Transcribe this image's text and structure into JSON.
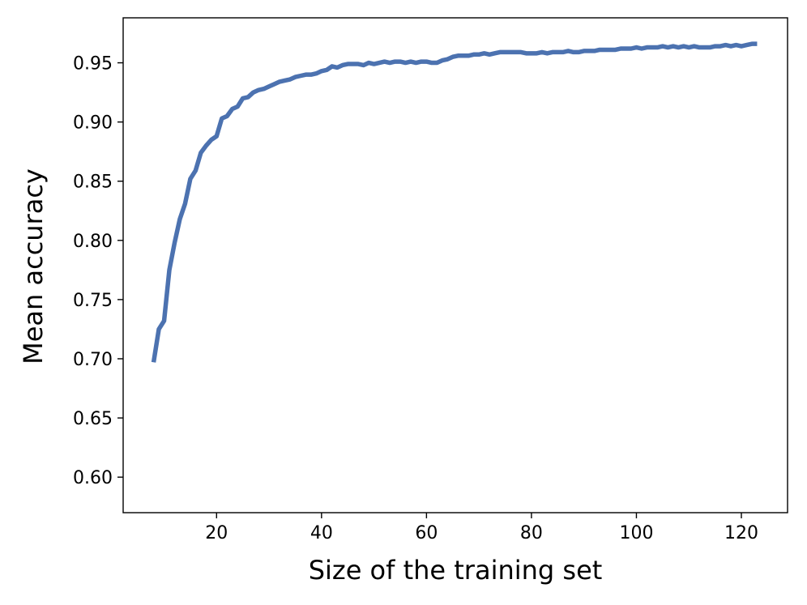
{
  "chart_data": {
    "type": "line",
    "title": "",
    "xlabel": "Size of the training set",
    "ylabel": "Mean accuracy",
    "xlim": [
      2.2,
      128.8
    ],
    "ylim": [
      0.57,
      0.988
    ],
    "x_ticks": [
      20,
      40,
      60,
      80,
      100,
      120
    ],
    "x_tick_labels": [
      "20",
      "40",
      "60",
      "80",
      100,
      "120"
    ],
    "y_ticks": [
      0.6,
      0.65,
      0.7,
      0.75,
      0.8,
      0.85,
      0.9,
      0.95
    ],
    "y_tick_labels": [
      "0.60",
      "0.65",
      "0.70",
      "0.75",
      "0.80",
      "0.85",
      "0.90",
      "0.95"
    ],
    "grid": false,
    "legend": "none",
    "series": [
      {
        "color": "#4c72b0",
        "x": [
          8,
          9,
          10,
          11,
          12,
          13,
          14,
          15,
          16,
          17,
          18,
          19,
          20,
          21,
          22,
          23,
          24,
          25,
          26,
          27,
          28,
          29,
          30,
          31,
          32,
          33,
          34,
          35,
          36,
          37,
          38,
          39,
          40,
          41,
          42,
          43,
          44,
          45,
          46,
          47,
          48,
          49,
          50,
          51,
          52,
          53,
          54,
          55,
          56,
          57,
          58,
          59,
          60,
          61,
          62,
          63,
          64,
          65,
          66,
          67,
          68,
          69,
          70,
          71,
          72,
          73,
          74,
          75,
          76,
          77,
          78,
          79,
          80,
          81,
          82,
          83,
          84,
          85,
          86,
          87,
          88,
          89,
          90,
          91,
          92,
          93,
          94,
          95,
          96,
          97,
          98,
          99,
          100,
          101,
          102,
          103,
          104,
          105,
          106,
          107,
          108,
          109,
          110,
          111,
          112,
          113,
          114,
          115,
          116,
          117,
          118,
          119,
          120,
          121,
          122,
          123
        ],
        "y": [
          0.697,
          0.725,
          0.732,
          0.775,
          0.798,
          0.818,
          0.831,
          0.852,
          0.859,
          0.874,
          0.88,
          0.885,
          0.888,
          0.903,
          0.905,
          0.911,
          0.913,
          0.92,
          0.921,
          0.925,
          0.927,
          0.928,
          0.93,
          0.932,
          0.934,
          0.935,
          0.936,
          0.938,
          0.939,
          0.94,
          0.94,
          0.941,
          0.943,
          0.944,
          0.947,
          0.946,
          0.948,
          0.949,
          0.949,
          0.949,
          0.948,
          0.95,
          0.949,
          0.95,
          0.951,
          0.95,
          0.951,
          0.951,
          0.95,
          0.951,
          0.95,
          0.951,
          0.951,
          0.95,
          0.95,
          0.952,
          0.953,
          0.955,
          0.956,
          0.956,
          0.956,
          0.957,
          0.957,
          0.958,
          0.957,
          0.958,
          0.959,
          0.959,
          0.959,
          0.959,
          0.959,
          0.958,
          0.958,
          0.958,
          0.959,
          0.958,
          0.959,
          0.959,
          0.959,
          0.96,
          0.959,
          0.959,
          0.96,
          0.96,
          0.96,
          0.961,
          0.961,
          0.961,
          0.961,
          0.962,
          0.962,
          0.962,
          0.963,
          0.962,
          0.963,
          0.963,
          0.963,
          0.964,
          0.963,
          0.964,
          0.963,
          0.964,
          0.963,
          0.964,
          0.963,
          0.963,
          0.963,
          0.964,
          0.964,
          0.965,
          0.964,
          0.965,
          0.964,
          0.965,
          0.966,
          0.966
        ]
      }
    ]
  }
}
